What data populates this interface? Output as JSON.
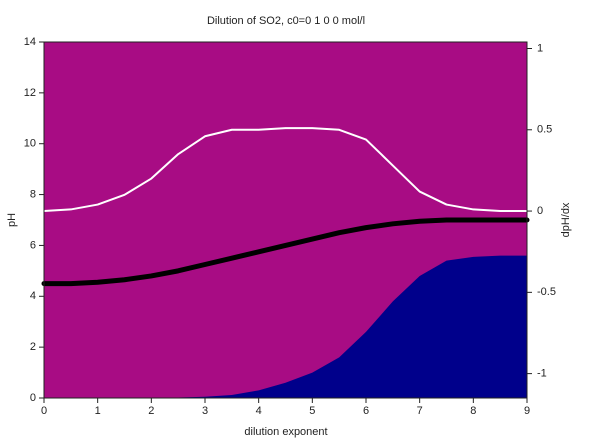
{
  "chart_data": {
    "type": "line",
    "title": "Dilution of SO2, c0=0 1 0 0 mol/l",
    "x_label": "dilution exponent",
    "y_label": "pH",
    "y2_label": "dpH/dx",
    "background": "#a80c84",
    "x": [
      0,
      0.5,
      1,
      1.5,
      2,
      2.5,
      3,
      3.5,
      4,
      4.5,
      5,
      5.5,
      6,
      6.5,
      7,
      7.5,
      8,
      8.5,
      9
    ],
    "xlim": [
      0,
      9
    ],
    "xticks": [
      0,
      1,
      2,
      3,
      4,
      5,
      6,
      7,
      8,
      9
    ],
    "ylim": [
      0,
      14
    ],
    "yticks": [
      0,
      2,
      4,
      6,
      8,
      10,
      12,
      14
    ],
    "y2lim": [
      -1.15,
      1.04
    ],
    "y2ticks": [
      -1,
      -0.5,
      0,
      0.5,
      1
    ],
    "series": [
      {
        "kind": "area",
        "color": "#00008b",
        "values": [
          0,
          0,
          0,
          0,
          0.01,
          0.02,
          0.05,
          0.12,
          0.3,
          0.6,
          1.0,
          1.6,
          2.6,
          3.8,
          4.8,
          5.4,
          5.55,
          5.6,
          5.6
        ]
      },
      {
        "kind": "line",
        "color": "#ffffff",
        "axis": "y2",
        "width": 2,
        "values": [
          0,
          0.01,
          0.04,
          0.1,
          0.2,
          0.35,
          0.46,
          0.5,
          0.5,
          0.51,
          0.51,
          0.5,
          0.44,
          0.28,
          0.12,
          0.04,
          0.01,
          0,
          0
        ]
      },
      {
        "kind": "line",
        "color": "#000000",
        "width": 5,
        "values": [
          4.5,
          4.5,
          4.55,
          4.65,
          4.8,
          5.0,
          5.25,
          5.5,
          5.75,
          6.0,
          6.25,
          6.5,
          6.7,
          6.85,
          6.95,
          7.0,
          7.0,
          7.0,
          7.0
        ]
      }
    ]
  }
}
